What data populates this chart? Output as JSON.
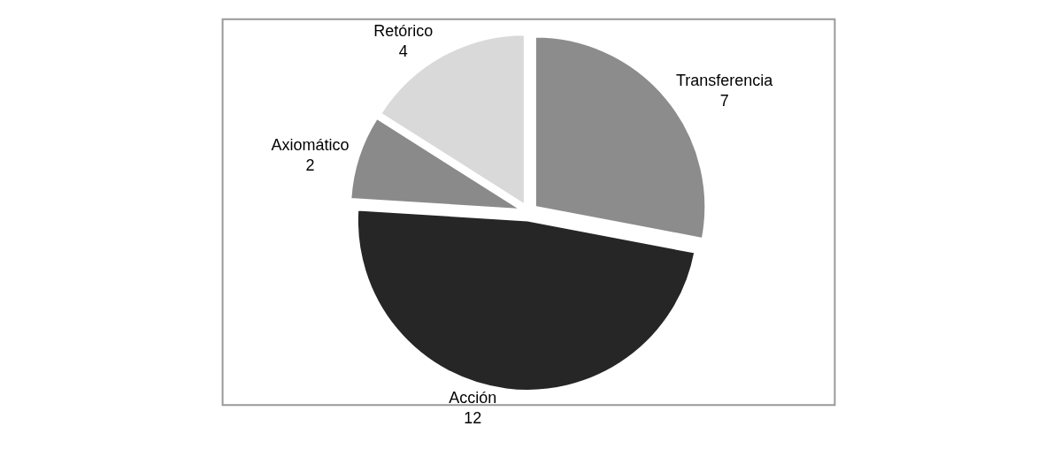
{
  "chart_data": {
    "type": "pie",
    "categories": [
      "Transferencia",
      "Acción",
      "Axiomático",
      "Retórico"
    ],
    "values": [
      7,
      12,
      2,
      4
    ],
    "colors": [
      "#8c8c8c",
      "#262626",
      "#8a8a8a",
      "#d9d9d9"
    ],
    "data_labels": true,
    "legend": false
  }
}
